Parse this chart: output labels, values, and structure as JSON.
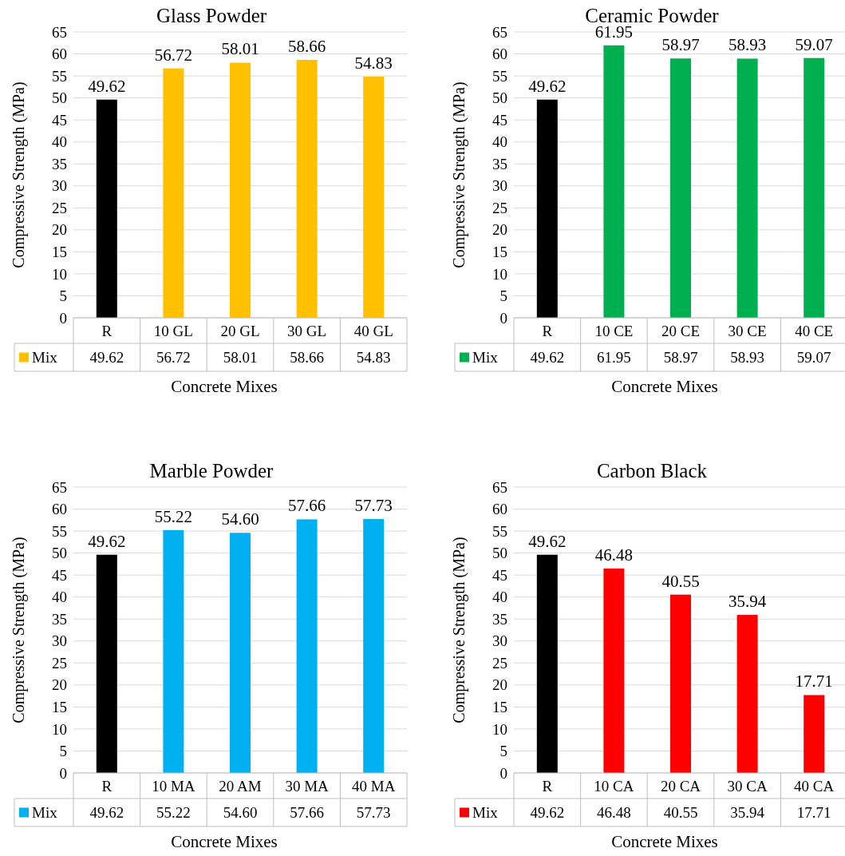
{
  "chart_data": [
    {
      "type": "bar",
      "title": "Glass Powder",
      "xlabel": "Concrete Mixes",
      "ylabel": "Compressive Strength (MPa)",
      "categories": [
        "R",
        "10 GL",
        "20 GL",
        "30 GL",
        "40 GL"
      ],
      "series": [
        {
          "name": "Mix",
          "color": "#ffc000",
          "colors": [
            "#000000",
            "#ffc000",
            "#ffc000",
            "#ffc000",
            "#ffc000"
          ],
          "values": [
            49.62,
            56.72,
            58.01,
            58.66,
            54.83
          ],
          "value_labels": [
            "49.62",
            "56.72",
            "58.01",
            "58.66",
            "54.83"
          ]
        }
      ],
      "ylim": [
        0,
        65
      ],
      "yticks": [
        0,
        5,
        10,
        15,
        20,
        25,
        30,
        35,
        40,
        45,
        50,
        55,
        60,
        65
      ],
      "grid": "y",
      "legend": "bottom"
    },
    {
      "type": "bar",
      "title": "Ceramic Powder",
      "xlabel": "Concrete Mixes",
      "ylabel": "Compressive Strength (MPa)",
      "categories": [
        "R",
        "10 CE",
        "20 CE",
        "30 CE",
        "40 CE"
      ],
      "series": [
        {
          "name": "Mix",
          "color": "#00b050",
          "colors": [
            "#000000",
            "#00b050",
            "#00b050",
            "#00b050",
            "#00b050"
          ],
          "values": [
            49.62,
            61.95,
            58.97,
            58.93,
            59.07
          ],
          "value_labels": [
            "49.62",
            "61.95",
            "58.97",
            "58.93",
            "59.07"
          ]
        }
      ],
      "ylim": [
        0,
        65
      ],
      "yticks": [
        0,
        5,
        10,
        15,
        20,
        25,
        30,
        35,
        40,
        45,
        50,
        55,
        60,
        65
      ],
      "grid": "y",
      "legend": "bottom"
    },
    {
      "type": "bar",
      "title": "Marble Powder",
      "xlabel": "Concrete Mixes",
      "ylabel": "Compressive Strength (MPa)",
      "categories": [
        "R",
        "10 MA",
        "20 AM",
        "30 MA",
        "40 MA"
      ],
      "series": [
        {
          "name": "Mix",
          "color": "#00b0f0",
          "colors": [
            "#000000",
            "#00b0f0",
            "#00b0f0",
            "#00b0f0",
            "#00b0f0"
          ],
          "values": [
            49.62,
            55.22,
            54.6,
            57.66,
            57.73
          ],
          "value_labels": [
            "49.62",
            "55.22",
            "54.60",
            "57.66",
            "57.73"
          ]
        }
      ],
      "ylim": [
        0,
        65
      ],
      "yticks": [
        0,
        5,
        10,
        15,
        20,
        25,
        30,
        35,
        40,
        45,
        50,
        55,
        60,
        65
      ],
      "grid": "y",
      "legend": "bottom"
    },
    {
      "type": "bar",
      "title": "Carbon Black",
      "xlabel": "Concrete Mixes",
      "ylabel": "Compressive Strength (MPa)",
      "categories": [
        "R",
        "10 CA",
        "20 CA",
        "30 CA",
        "40 CA"
      ],
      "series": [
        {
          "name": "Mix",
          "color": "#ff0000",
          "colors": [
            "#000000",
            "#ff0000",
            "#ff0000",
            "#ff0000",
            "#ff0000"
          ],
          "values": [
            49.62,
            46.48,
            40.55,
            35.94,
            17.71
          ],
          "value_labels": [
            "49.62",
            "46.48",
            "40.55",
            "35.94",
            "17.71"
          ]
        }
      ],
      "ylim": [
        0,
        65
      ],
      "yticks": [
        0,
        5,
        10,
        15,
        20,
        25,
        30,
        35,
        40,
        45,
        50,
        55,
        60,
        65
      ],
      "grid": "y",
      "legend": "bottom"
    }
  ]
}
